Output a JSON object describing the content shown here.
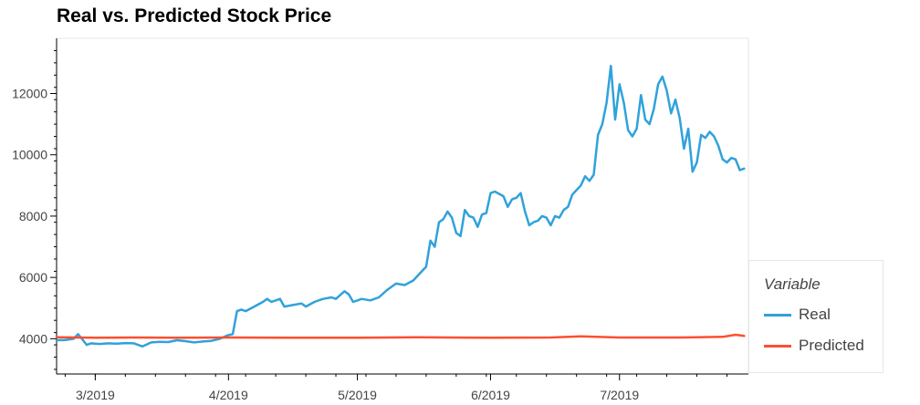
{
  "chart_data": {
    "type": "line",
    "title": "Real vs. Predicted Stock Price",
    "xlabel": "",
    "ylabel": "",
    "xlim": [
      "2019-02-20",
      "2019-07-31"
    ],
    "ylim": [
      2850,
      13800
    ],
    "y_ticks": [
      4000,
      6000,
      8000,
      10000,
      12000
    ],
    "x_ticks": [
      {
        "date": "2019-03-01",
        "label": "3/2019"
      },
      {
        "date": "2019-04-01",
        "label": "4/2019"
      },
      {
        "date": "2019-05-01",
        "label": "5/2019"
      },
      {
        "date": "2019-06-01",
        "label": "6/2019"
      },
      {
        "date": "2019-07-01",
        "label": "7/2019"
      }
    ],
    "grid": false,
    "legend_title": "Variable",
    "legend_position": "right, outside bottom",
    "series": [
      {
        "name": "Real",
        "color": "#30a2da",
        "points": [
          [
            "2019-02-20",
            3950
          ],
          [
            "2019-02-22",
            3960
          ],
          [
            "2019-02-24",
            4000
          ],
          [
            "2019-02-25",
            4150
          ],
          [
            "2019-02-26",
            3980
          ],
          [
            "2019-02-27",
            3800
          ],
          [
            "2019-02-28",
            3850
          ],
          [
            "2019-03-02",
            3830
          ],
          [
            "2019-03-04",
            3850
          ],
          [
            "2019-03-06",
            3840
          ],
          [
            "2019-03-08",
            3860
          ],
          [
            "2019-03-10",
            3850
          ],
          [
            "2019-03-12",
            3750
          ],
          [
            "2019-03-14",
            3880
          ],
          [
            "2019-03-16",
            3900
          ],
          [
            "2019-03-18",
            3890
          ],
          [
            "2019-03-20",
            3950
          ],
          [
            "2019-03-22",
            3920
          ],
          [
            "2019-03-24",
            3880
          ],
          [
            "2019-03-26",
            3910
          ],
          [
            "2019-03-28",
            3930
          ],
          [
            "2019-03-30",
            4000
          ],
          [
            "2019-04-01",
            4120
          ],
          [
            "2019-04-02",
            4150
          ],
          [
            "2019-04-03",
            4900
          ],
          [
            "2019-04-04",
            4950
          ],
          [
            "2019-04-05",
            4900
          ],
          [
            "2019-04-07",
            5050
          ],
          [
            "2019-04-09",
            5200
          ],
          [
            "2019-04-10",
            5300
          ],
          [
            "2019-04-11",
            5200
          ],
          [
            "2019-04-13",
            5300
          ],
          [
            "2019-04-14",
            5050
          ],
          [
            "2019-04-16",
            5100
          ],
          [
            "2019-04-18",
            5150
          ],
          [
            "2019-04-19",
            5050
          ],
          [
            "2019-04-21",
            5200
          ],
          [
            "2019-04-23",
            5300
          ],
          [
            "2019-04-25",
            5350
          ],
          [
            "2019-04-26",
            5300
          ],
          [
            "2019-04-28",
            5550
          ],
          [
            "2019-04-29",
            5450
          ],
          [
            "2019-04-30",
            5200
          ],
          [
            "2019-05-02",
            5300
          ],
          [
            "2019-05-04",
            5250
          ],
          [
            "2019-05-06",
            5350
          ],
          [
            "2019-05-08",
            5600
          ],
          [
            "2019-05-10",
            5800
          ],
          [
            "2019-05-12",
            5750
          ],
          [
            "2019-05-14",
            5900
          ],
          [
            "2019-05-16",
            6200
          ],
          [
            "2019-05-17",
            6350
          ],
          [
            "2019-05-18",
            7200
          ],
          [
            "2019-05-19",
            7000
          ],
          [
            "2019-05-20",
            7800
          ],
          [
            "2019-05-21",
            7900
          ],
          [
            "2019-05-22",
            8150
          ],
          [
            "2019-05-23",
            7950
          ],
          [
            "2019-05-24",
            7450
          ],
          [
            "2019-05-25",
            7350
          ],
          [
            "2019-05-26",
            8200
          ],
          [
            "2019-05-27",
            8000
          ],
          [
            "2019-05-28",
            7950
          ],
          [
            "2019-05-29",
            7650
          ],
          [
            "2019-05-30",
            8050
          ],
          [
            "2019-05-31",
            8100
          ],
          [
            "2019-06-01",
            8750
          ],
          [
            "2019-06-02",
            8800
          ],
          [
            "2019-06-04",
            8650
          ],
          [
            "2019-06-05",
            8300
          ],
          [
            "2019-06-06",
            8550
          ],
          [
            "2019-06-07",
            8600
          ],
          [
            "2019-06-08",
            8750
          ],
          [
            "2019-06-09",
            8150
          ],
          [
            "2019-06-10",
            7700
          ],
          [
            "2019-06-11",
            7800
          ],
          [
            "2019-06-12",
            7850
          ],
          [
            "2019-06-13",
            8000
          ],
          [
            "2019-06-14",
            7950
          ],
          [
            "2019-06-15",
            7700
          ],
          [
            "2019-06-16",
            8000
          ],
          [
            "2019-06-17",
            7950
          ],
          [
            "2019-06-18",
            8200
          ],
          [
            "2019-06-19",
            8300
          ],
          [
            "2019-06-20",
            8700
          ],
          [
            "2019-06-21",
            8850
          ],
          [
            "2019-06-22",
            9000
          ],
          [
            "2019-06-23",
            9300
          ],
          [
            "2019-06-24",
            9150
          ],
          [
            "2019-06-25",
            9350
          ],
          [
            "2019-06-26",
            10650
          ],
          [
            "2019-06-27",
            11000
          ],
          [
            "2019-06-28",
            11700
          ],
          [
            "2019-06-29",
            12900
          ],
          [
            "2019-06-30",
            11150
          ],
          [
            "2019-07-01",
            12300
          ],
          [
            "2019-07-02",
            11700
          ],
          [
            "2019-07-03",
            10800
          ],
          [
            "2019-07-04",
            10600
          ],
          [
            "2019-07-05",
            10850
          ],
          [
            "2019-07-06",
            11950
          ],
          [
            "2019-07-07",
            11150
          ],
          [
            "2019-07-08",
            11000
          ],
          [
            "2019-07-09",
            11500
          ],
          [
            "2019-07-10",
            12300
          ],
          [
            "2019-07-11",
            12550
          ],
          [
            "2019-07-12",
            12100
          ],
          [
            "2019-07-13",
            11350
          ],
          [
            "2019-07-14",
            11800
          ],
          [
            "2019-07-15",
            11200
          ],
          [
            "2019-07-16",
            10200
          ],
          [
            "2019-07-17",
            10850
          ],
          [
            "2019-07-18",
            9450
          ],
          [
            "2019-07-19",
            9750
          ],
          [
            "2019-07-20",
            10650
          ],
          [
            "2019-07-21",
            10550
          ],
          [
            "2019-07-22",
            10750
          ],
          [
            "2019-07-23",
            10600
          ],
          [
            "2019-07-24",
            10300
          ],
          [
            "2019-07-25",
            9850
          ],
          [
            "2019-07-26",
            9750
          ],
          [
            "2019-07-27",
            9900
          ],
          [
            "2019-07-28",
            9850
          ],
          [
            "2019-07-29",
            9500
          ],
          [
            "2019-07-30",
            9550
          ]
        ]
      },
      {
        "name": "Predicted",
        "color": "#fc4f30",
        "points": [
          [
            "2019-02-20",
            4050
          ],
          [
            "2019-03-01",
            4030
          ],
          [
            "2019-03-10",
            4040
          ],
          [
            "2019-03-20",
            4030
          ],
          [
            "2019-04-01",
            4040
          ],
          [
            "2019-04-15",
            4030
          ],
          [
            "2019-05-01",
            4030
          ],
          [
            "2019-05-15",
            4050
          ],
          [
            "2019-06-01",
            4030
          ],
          [
            "2019-06-15",
            4040
          ],
          [
            "2019-06-22",
            4080
          ],
          [
            "2019-07-01",
            4040
          ],
          [
            "2019-07-15",
            4040
          ],
          [
            "2019-07-25",
            4060
          ],
          [
            "2019-07-28",
            4130
          ],
          [
            "2019-07-30",
            4090
          ]
        ]
      }
    ]
  }
}
